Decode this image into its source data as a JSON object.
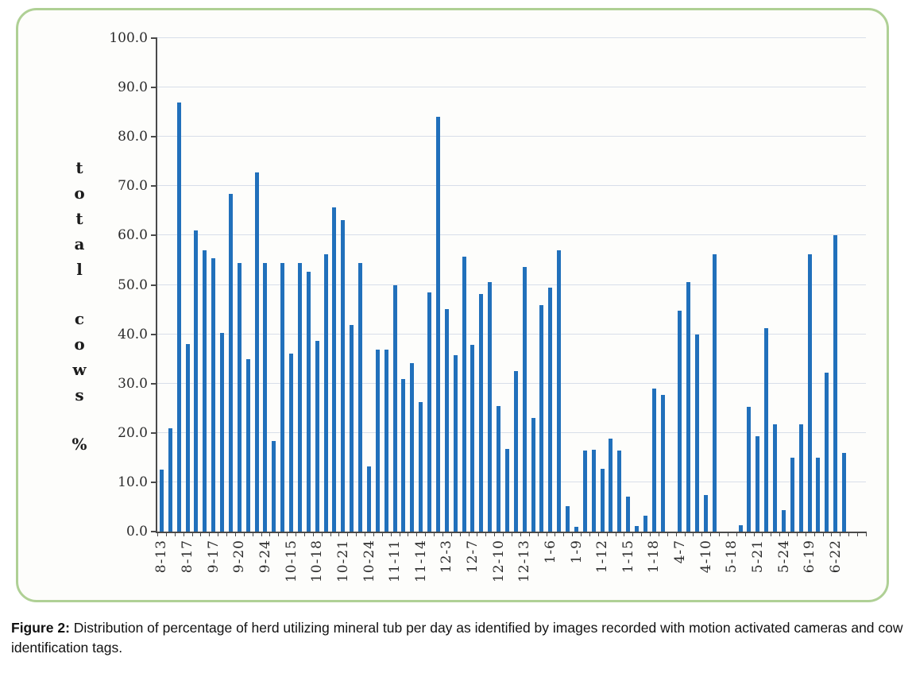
{
  "figure": {
    "label": "Figure 2:",
    "caption": "Distribution of percentage of herd utilizing mineral tub per day as identified by images recorded with motion activated cameras and cow identification tags."
  },
  "chart_data": {
    "type": "bar",
    "title": "",
    "ylabel_display": "total cows %",
    "ylabel_words": [
      "total",
      "cows",
      "%"
    ],
    "ylim": [
      0,
      100
    ],
    "ytick_step": 10,
    "ytick_labels": [
      "0.0",
      "10.0",
      "20.0",
      "30.0",
      "40.0",
      "50.0",
      "60.0",
      "70.0",
      "80.0",
      "90.0",
      "100.0"
    ],
    "grid": true,
    "legend": "none",
    "label_every": 3,
    "axis_trailing_slots": 2,
    "bar_color": "#2170BB",
    "gridline_color": "#D8DEE9",
    "axis_color": "#4a4a4a",
    "border_color": "#AFD095",
    "tick_labels": [
      "8-13",
      "8-17",
      "9-17",
      "9-20",
      "9-24",
      "10-15",
      "10-18",
      "10-21",
      "10-24",
      "11-11",
      "11-14",
      "12-3",
      "12-7",
      "12-10",
      "12-13",
      "1-6",
      "1-9",
      "1-12",
      "1-15",
      "1-18",
      "4-7",
      "4-10",
      "5-18",
      "5-21",
      "5-24",
      "6-19",
      "6-22"
    ],
    "values": [
      12.5,
      21,
      87,
      38,
      61,
      57,
      55.4,
      40.3,
      68.4,
      54.5,
      35,
      72.8,
      54.4,
      18.4,
      54.4,
      36,
      54.4,
      52.6,
      38.6,
      56.2,
      65.7,
      63.2,
      41.9,
      54.4,
      13.2,
      36.9,
      36.8,
      50,
      30.9,
      34.1,
      26.2,
      48.4,
      84.1,
      45.1,
      35.8,
      55.7,
      37.9,
      48.2,
      50.5,
      25.5,
      16.8,
      32.5,
      53.7,
      23.1,
      45.9,
      49.4,
      57,
      5.1,
      1,
      16.5,
      16.6,
      12.7,
      18.8,
      16.5,
      7.1,
      1.1,
      3.2,
      29,
      27.7,
      0,
      44.8,
      50.5,
      40,
      7.4,
      56.2,
      0,
      0,
      1.3,
      25.3,
      19.3,
      41.2,
      21.7,
      4.4,
      15,
      21.7,
      56.2,
      15,
      32.2,
      60,
      16
    ]
  }
}
